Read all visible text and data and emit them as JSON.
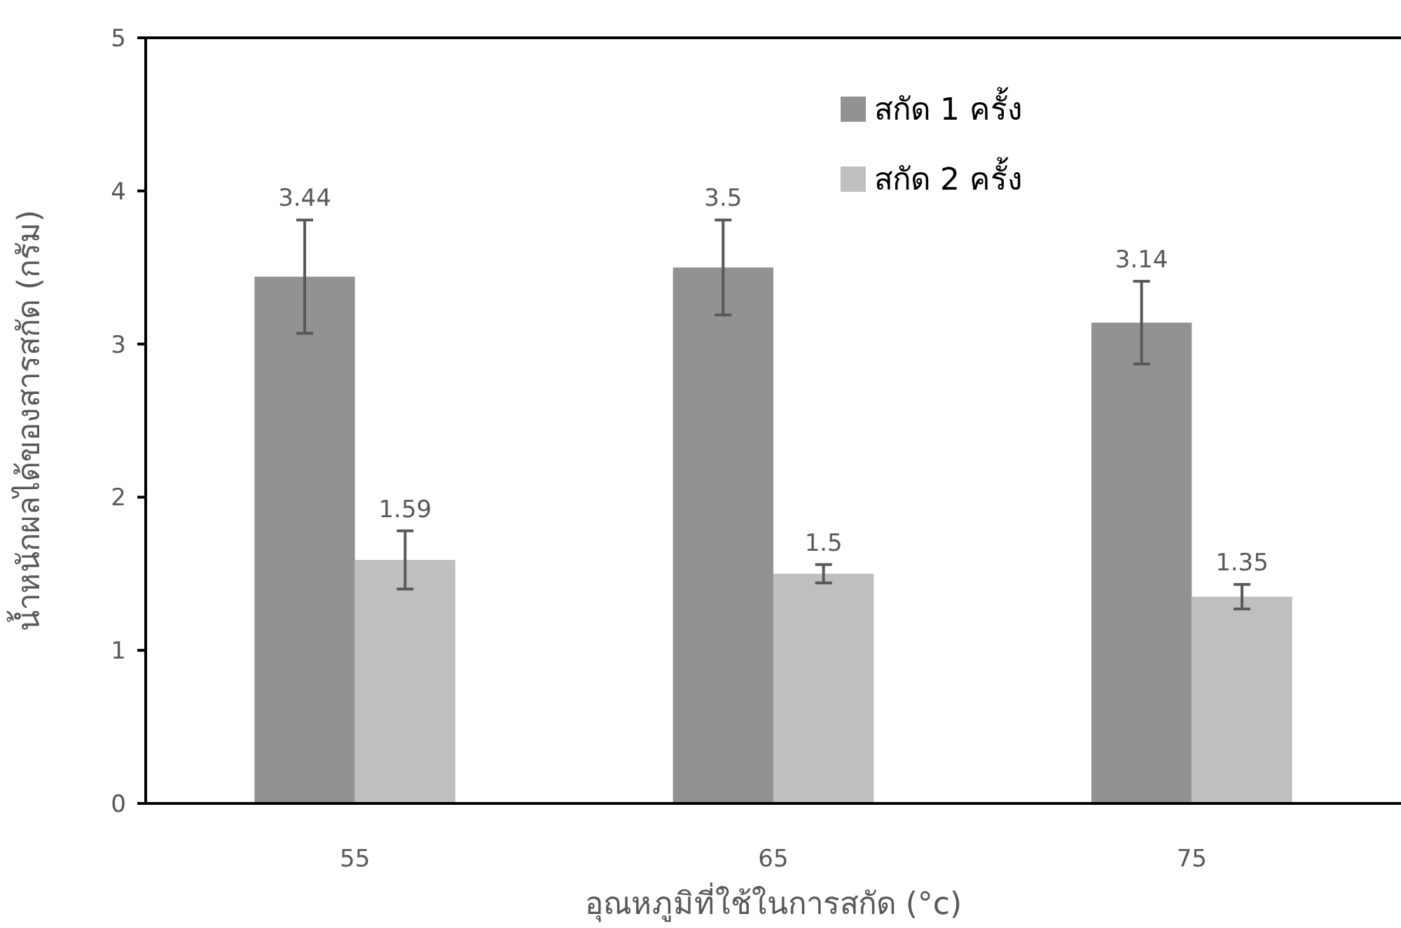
{
  "chart_data": {
    "type": "bar",
    "xlabel": "อุณหภูมิที่ใช้ในการสกัด (°c)",
    "ylabel": "น้ำหนักผลได้ของสารสกัด (กรัม)",
    "categories": [
      "55",
      "65",
      "75"
    ],
    "series": [
      {
        "name": "สกัด 1 ครั้ง",
        "color": "#929292",
        "values": [
          3.44,
          3.5,
          3.14
        ],
        "errors": [
          0.37,
          0.31,
          0.27
        ]
      },
      {
        "name": "สกัด 2 ครั้ง",
        "color": "#bfbfbf",
        "values": [
          1.59,
          1.5,
          1.35
        ],
        "errors": [
          0.19,
          0.06,
          0.08
        ]
      }
    ],
    "ylim": [
      0,
      5
    ],
    "yticks": [
      0,
      1,
      2,
      3,
      4,
      5
    ],
    "data_labels": true,
    "legend": "top right",
    "grid": false
  }
}
